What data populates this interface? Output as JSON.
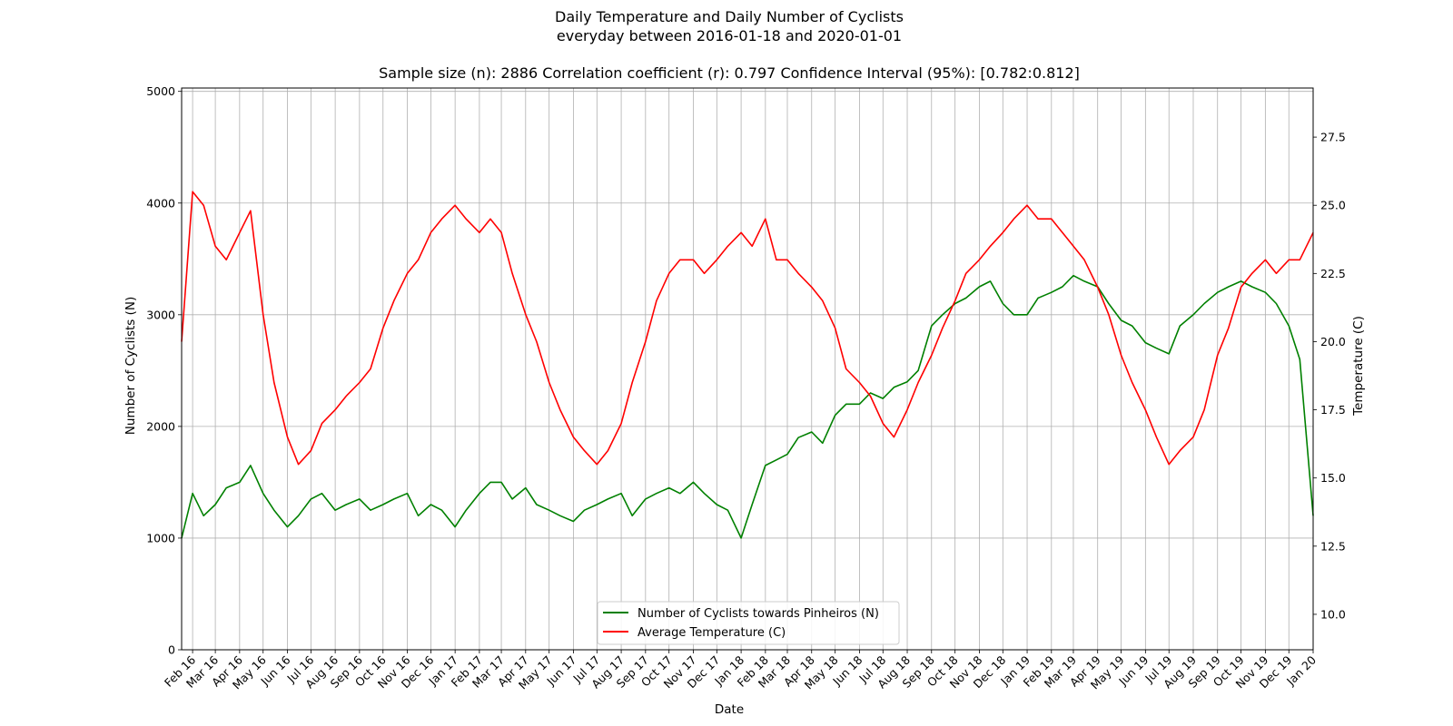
{
  "chart_data": {
    "type": "line",
    "title_lines": [
      "Daily Temperature and Daily Number of Cyclists",
      "everyday between 2016-01-18 and 2020-01-01"
    ],
    "subtitle": "Sample size (n): 2886   Correlation coefficient (r): 0.797   Confidence Interval (95%): [0.782:0.812]",
    "xlabel": "Date",
    "ylabel_left": "Number of Cyclists (N)",
    "ylabel_right": "Temperature (C)",
    "x_range": [
      "2016-01-18",
      "2020-01-01"
    ],
    "ylim_left": [
      0,
      5030
    ],
    "ylim_right": [
      8.7,
      29.3
    ],
    "yticks_left": [
      0,
      1000,
      2000,
      3000,
      4000,
      5000
    ],
    "yticks_left_labels": [
      "0",
      "1000",
      "2000",
      "3000",
      "4000",
      "5000"
    ],
    "yticks_right": [
      10.0,
      12.5,
      15.0,
      17.5,
      20.0,
      22.5,
      25.0,
      27.5
    ],
    "yticks_right_labels": [
      "10.0",
      "12.5",
      "15.0",
      "17.5",
      "20.0",
      "22.5",
      "25.0",
      "27.5"
    ],
    "xticks": [
      "2016-02-01",
      "2016-03-01",
      "2016-04-01",
      "2016-05-01",
      "2016-06-01",
      "2016-07-01",
      "2016-08-01",
      "2016-09-01",
      "2016-10-01",
      "2016-11-01",
      "2016-12-01",
      "2017-01-01",
      "2017-02-01",
      "2017-03-01",
      "2017-04-01",
      "2017-05-01",
      "2017-06-01",
      "2017-07-01",
      "2017-08-01",
      "2017-09-01",
      "2017-10-01",
      "2017-11-01",
      "2017-12-01",
      "2018-01-01",
      "2018-02-01",
      "2018-03-01",
      "2018-04-01",
      "2018-05-01",
      "2018-06-01",
      "2018-07-01",
      "2018-08-01",
      "2018-09-01",
      "2018-10-01",
      "2018-11-01",
      "2018-12-01",
      "2019-01-01",
      "2019-02-01",
      "2019-03-01",
      "2019-04-01",
      "2019-05-01",
      "2019-06-01",
      "2019-07-01",
      "2019-08-01",
      "2019-09-01",
      "2019-10-01",
      "2019-11-01",
      "2019-12-01",
      "2020-01-01"
    ],
    "xtick_labels": [
      "Feb 16",
      "Mar 16",
      "Apr 16",
      "May 16",
      "Jun 16",
      "Jul 16",
      "Aug 16",
      "Sep 16",
      "Oct 16",
      "Nov 16",
      "Dec 16",
      "Jan 17",
      "Feb 17",
      "Mar 17",
      "Apr 17",
      "May 17",
      "Jun 17",
      "Jul 17",
      "Aug 17",
      "Sep 17",
      "Oct 17",
      "Nov 17",
      "Dec 17",
      "Jan 18",
      "Feb 18",
      "Mar 18",
      "Apr 18",
      "May 18",
      "Jun 18",
      "Jul 18",
      "Aug 18",
      "Sep 18",
      "Oct 18",
      "Nov 18",
      "Dec 18",
      "Jan 19",
      "Feb 19",
      "Mar 19",
      "Apr 19",
      "May 19",
      "Jun 19",
      "Jul 19",
      "Aug 19",
      "Sep 19",
      "Oct 19",
      "Nov 19",
      "Dec 19",
      "Jan 20"
    ],
    "grid": true,
    "legend_position": "bottom-center",
    "series": [
      {
        "name": "Number of Cyclists towards Pinheiros (N)",
        "axis": "left",
        "color": "#008000",
        "x": [
          "2016-01-18",
          "2016-02-01",
          "2016-02-15",
          "2016-03-01",
          "2016-03-15",
          "2016-04-01",
          "2016-04-15",
          "2016-05-01",
          "2016-05-15",
          "2016-06-01",
          "2016-06-15",
          "2016-07-01",
          "2016-07-15",
          "2016-08-01",
          "2016-08-15",
          "2016-09-01",
          "2016-09-15",
          "2016-10-01",
          "2016-10-15",
          "2016-11-01",
          "2016-11-15",
          "2016-12-01",
          "2016-12-15",
          "2017-01-01",
          "2017-01-15",
          "2017-02-01",
          "2017-02-15",
          "2017-03-01",
          "2017-03-15",
          "2017-04-01",
          "2017-04-15",
          "2017-05-01",
          "2017-05-15",
          "2017-06-01",
          "2017-06-15",
          "2017-07-01",
          "2017-07-15",
          "2017-08-01",
          "2017-08-15",
          "2017-09-01",
          "2017-09-15",
          "2017-10-01",
          "2017-10-15",
          "2017-11-01",
          "2017-11-15",
          "2017-12-01",
          "2017-12-15",
          "2018-01-01",
          "2018-01-15",
          "2018-02-01",
          "2018-02-15",
          "2018-03-01",
          "2018-03-15",
          "2018-04-01",
          "2018-04-15",
          "2018-05-01",
          "2018-05-15",
          "2018-06-01",
          "2018-06-15",
          "2018-07-01",
          "2018-07-15",
          "2018-08-01",
          "2018-08-15",
          "2018-09-01",
          "2018-09-15",
          "2018-10-01",
          "2018-10-15",
          "2018-11-01",
          "2018-11-15",
          "2018-12-01",
          "2018-12-15",
          "2019-01-01",
          "2019-01-15",
          "2019-02-01",
          "2019-02-15",
          "2019-03-01",
          "2019-03-15",
          "2019-04-01",
          "2019-04-15",
          "2019-05-01",
          "2019-05-15",
          "2019-06-01",
          "2019-06-15",
          "2019-07-01",
          "2019-07-15",
          "2019-08-01",
          "2019-08-15",
          "2019-09-01",
          "2019-09-15",
          "2019-10-01",
          "2019-10-15",
          "2019-11-01",
          "2019-11-15",
          "2019-12-01",
          "2019-12-15",
          "2020-01-01"
        ],
        "y": [
          1000,
          1400,
          1200,
          1300,
          1450,
          1500,
          1650,
          1400,
          1250,
          1100,
          1200,
          1350,
          1400,
          1250,
          1300,
          1350,
          1250,
          1300,
          1350,
          1400,
          1200,
          1300,
          1250,
          1100,
          1250,
          1400,
          1500,
          1500,
          1350,
          1450,
          1300,
          1250,
          1200,
          1150,
          1250,
          1300,
          1350,
          1400,
          1200,
          1350,
          1400,
          1450,
          1400,
          1500,
          1400,
          1300,
          1250,
          1000,
          1300,
          1650,
          1700,
          1750,
          1900,
          1950,
          1850,
          2100,
          2200,
          2200,
          2300,
          2250,
          2350,
          2400,
          2500,
          2900,
          3000,
          3100,
          3150,
          3250,
          3300,
          3100,
          3000,
          3000,
          3150,
          3200,
          3250,
          3350,
          3300,
          3250,
          3100,
          2950,
          2900,
          2750,
          2700,
          2650,
          2900,
          3000,
          3100,
          3200,
          3250,
          3300,
          3250,
          3200,
          3100,
          2900,
          2600,
          1200
        ]
      },
      {
        "name": "Average Temperature (C)",
        "axis": "right",
        "color": "#ff0000",
        "x": [
          "2016-01-18",
          "2016-02-01",
          "2016-02-15",
          "2016-03-01",
          "2016-03-15",
          "2016-04-01",
          "2016-04-15",
          "2016-05-01",
          "2016-05-15",
          "2016-06-01",
          "2016-06-15",
          "2016-07-01",
          "2016-07-15",
          "2016-08-01",
          "2016-08-15",
          "2016-09-01",
          "2016-09-15",
          "2016-10-01",
          "2016-10-15",
          "2016-11-01",
          "2016-11-15",
          "2016-12-01",
          "2016-12-15",
          "2017-01-01",
          "2017-01-15",
          "2017-02-01",
          "2017-02-15",
          "2017-03-01",
          "2017-03-15",
          "2017-04-01",
          "2017-04-15",
          "2017-05-01",
          "2017-05-15",
          "2017-06-01",
          "2017-06-15",
          "2017-07-01",
          "2017-07-15",
          "2017-08-01",
          "2017-08-15",
          "2017-09-01",
          "2017-09-15",
          "2017-10-01",
          "2017-10-15",
          "2017-11-01",
          "2017-11-15",
          "2017-12-01",
          "2017-12-15",
          "2018-01-01",
          "2018-01-15",
          "2018-02-01",
          "2018-02-15",
          "2018-03-01",
          "2018-03-15",
          "2018-04-01",
          "2018-04-15",
          "2018-05-01",
          "2018-05-15",
          "2018-06-01",
          "2018-06-15",
          "2018-07-01",
          "2018-07-15",
          "2018-08-01",
          "2018-08-15",
          "2018-09-01",
          "2018-09-15",
          "2018-10-01",
          "2018-10-15",
          "2018-11-01",
          "2018-11-15",
          "2018-12-01",
          "2018-12-15",
          "2019-01-01",
          "2019-01-15",
          "2019-02-01",
          "2019-02-15",
          "2019-03-01",
          "2019-03-15",
          "2019-04-01",
          "2019-04-15",
          "2019-05-01",
          "2019-05-15",
          "2019-06-01",
          "2019-06-15",
          "2019-07-01",
          "2019-07-15",
          "2019-08-01",
          "2019-08-15",
          "2019-09-01",
          "2019-09-15",
          "2019-10-01",
          "2019-10-15",
          "2019-11-01",
          "2019-11-15",
          "2019-12-01",
          "2019-12-15",
          "2020-01-01"
        ],
        "y": [
          20.0,
          25.5,
          25.0,
          23.5,
          23.0,
          24.0,
          24.8,
          21.0,
          18.5,
          16.5,
          15.5,
          16.0,
          17.0,
          17.5,
          18.0,
          18.5,
          19.0,
          20.5,
          21.5,
          22.5,
          23.0,
          24.0,
          24.5,
          25.0,
          24.5,
          24.0,
          24.5,
          24.0,
          22.5,
          21.0,
          20.0,
          18.5,
          17.5,
          16.5,
          16.0,
          15.5,
          16.0,
          17.0,
          18.5,
          20.0,
          21.5,
          22.5,
          23.0,
          23.0,
          22.5,
          23.0,
          23.5,
          24.0,
          23.5,
          24.5,
          23.0,
          23.0,
          22.5,
          22.0,
          21.5,
          20.5,
          19.0,
          18.5,
          18.0,
          17.0,
          16.5,
          17.5,
          18.5,
          19.5,
          20.5,
          21.5,
          22.5,
          23.0,
          23.5,
          24.0,
          24.5,
          25.0,
          24.5,
          24.5,
          24.0,
          23.5,
          23.0,
          22.0,
          21.0,
          19.5,
          18.5,
          17.5,
          16.5,
          15.5,
          16.0,
          16.5,
          17.5,
          19.5,
          20.5,
          22.0,
          22.5,
          23.0,
          22.5,
          23.0,
          23.0,
          24.0
        ]
      }
    ]
  }
}
